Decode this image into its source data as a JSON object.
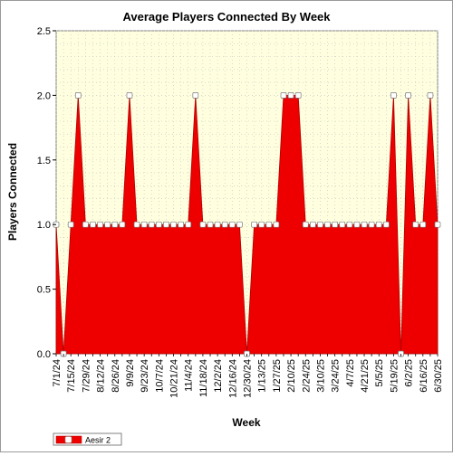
{
  "chart_data": {
    "type": "area",
    "title": "Average Players Connected By Week",
    "xlabel": "Week",
    "ylabel": "Players Connected",
    "ylim": [
      0,
      2.5
    ],
    "yticks": [
      "0.0",
      "0.5",
      "1.0",
      "1.5",
      "2.0",
      "2.5"
    ],
    "grid": true,
    "legend": "bottom-left",
    "colors": {
      "series": "#ee0000",
      "plot_background": "#ffffe0",
      "marker_fill": "#ffffff"
    },
    "x": [
      "7/1/24",
      "7/8/24",
      "7/15/24",
      "7/22/24",
      "7/29/24",
      "8/5/24",
      "8/12/24",
      "8/19/24",
      "8/26/24",
      "9/2/24",
      "9/9/24",
      "9/16/24",
      "9/23/24",
      "9/30/24",
      "10/7/24",
      "10/14/24",
      "10/21/24",
      "10/28/24",
      "11/4/24",
      "11/11/24",
      "11/18/24",
      "11/25/24",
      "12/2/24",
      "12/9/24",
      "12/16/24",
      "12/23/24",
      "12/30/24",
      "1/6/25",
      "1/13/25",
      "1/20/25",
      "1/27/25",
      "2/3/25",
      "2/10/25",
      "2/17/25",
      "2/24/25",
      "3/3/25",
      "3/10/25",
      "3/17/25",
      "3/24/25",
      "3/31/25",
      "4/7/25",
      "4/14/25",
      "4/21/25",
      "4/28/25",
      "5/5/25",
      "5/12/25",
      "5/19/25",
      "5/26/25",
      "6/2/25",
      "6/9/25",
      "6/16/25",
      "6/23/25",
      "6/30/25"
    ],
    "xticks": [
      "7/1/24",
      "7/15/24",
      "7/29/24",
      "8/12/24",
      "8/26/24",
      "9/9/24",
      "9/23/24",
      "10/7/24",
      "10/21/24",
      "11/4/24",
      "11/18/24",
      "12/2/24",
      "12/16/24",
      "12/30/24",
      "1/13/25",
      "1/27/25",
      "2/10/25",
      "2/24/25",
      "3/10/25",
      "3/24/25",
      "4/7/25",
      "4/21/25",
      "5/5/25",
      "5/19/25",
      "6/2/25",
      "6/16/25",
      "6/30/25"
    ],
    "series": [
      {
        "name": "Aesir 2",
        "values": [
          1,
          0,
          1,
          2,
          1,
          1,
          1,
          1,
          1,
          1,
          2,
          1,
          1,
          1,
          1,
          1,
          1,
          1,
          1,
          2,
          1,
          1,
          1,
          1,
          1,
          1,
          0,
          1,
          1,
          1,
          1,
          2,
          2,
          2,
          1,
          1,
          1,
          1,
          1,
          1,
          1,
          1,
          1,
          1,
          1,
          1,
          2,
          0,
          2,
          1,
          1,
          2,
          1
        ]
      }
    ]
  }
}
